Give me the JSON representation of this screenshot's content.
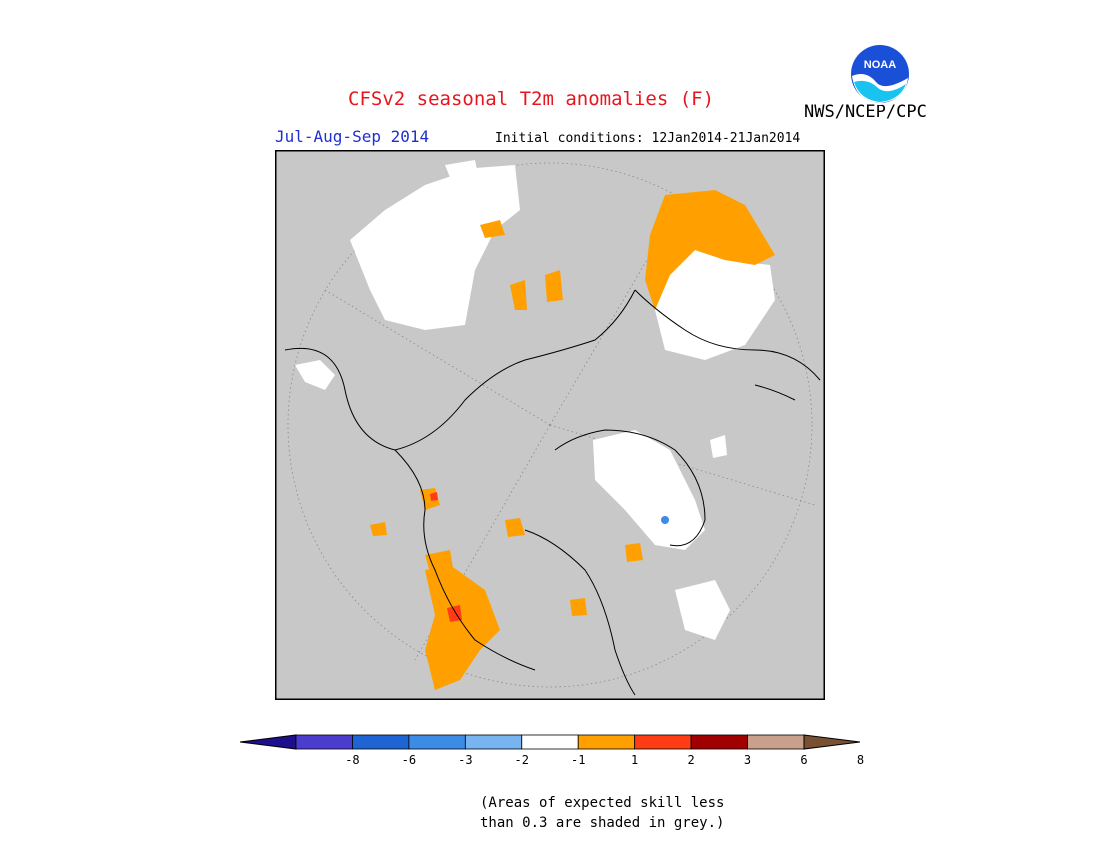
{
  "header": {
    "title": "CFSv2 seasonal T2m anomalies (F)",
    "agency": "NWS/NCEP/CPC",
    "logo_text": "NOAA",
    "period": "Jul-Aug-Sep 2014",
    "initial_conditions": "Initial conditions: 12Jan2014-21Jan2014"
  },
  "map": {
    "projection": "north polar stereographic",
    "background_color": "#c8c8c8",
    "land_outline_color": "#000000"
  },
  "legend": {
    "ticks": [
      "-8",
      "-6",
      "-3",
      "-2",
      "-1",
      "1",
      "2",
      "3",
      "6",
      "8"
    ],
    "colors": [
      "#1e0f8c",
      "#4b3ccd",
      "#1e64d2",
      "#3c8ce6",
      "#78b4f0",
      "#ffffff",
      "#ffa000",
      "#ff3c14",
      "#a00000",
      "#c8a08c",
      "#785032"
    ]
  },
  "footnote": {
    "line1": "(Areas of expected skill less",
    "line2": "than 0.3 are shaded in grey.)"
  }
}
